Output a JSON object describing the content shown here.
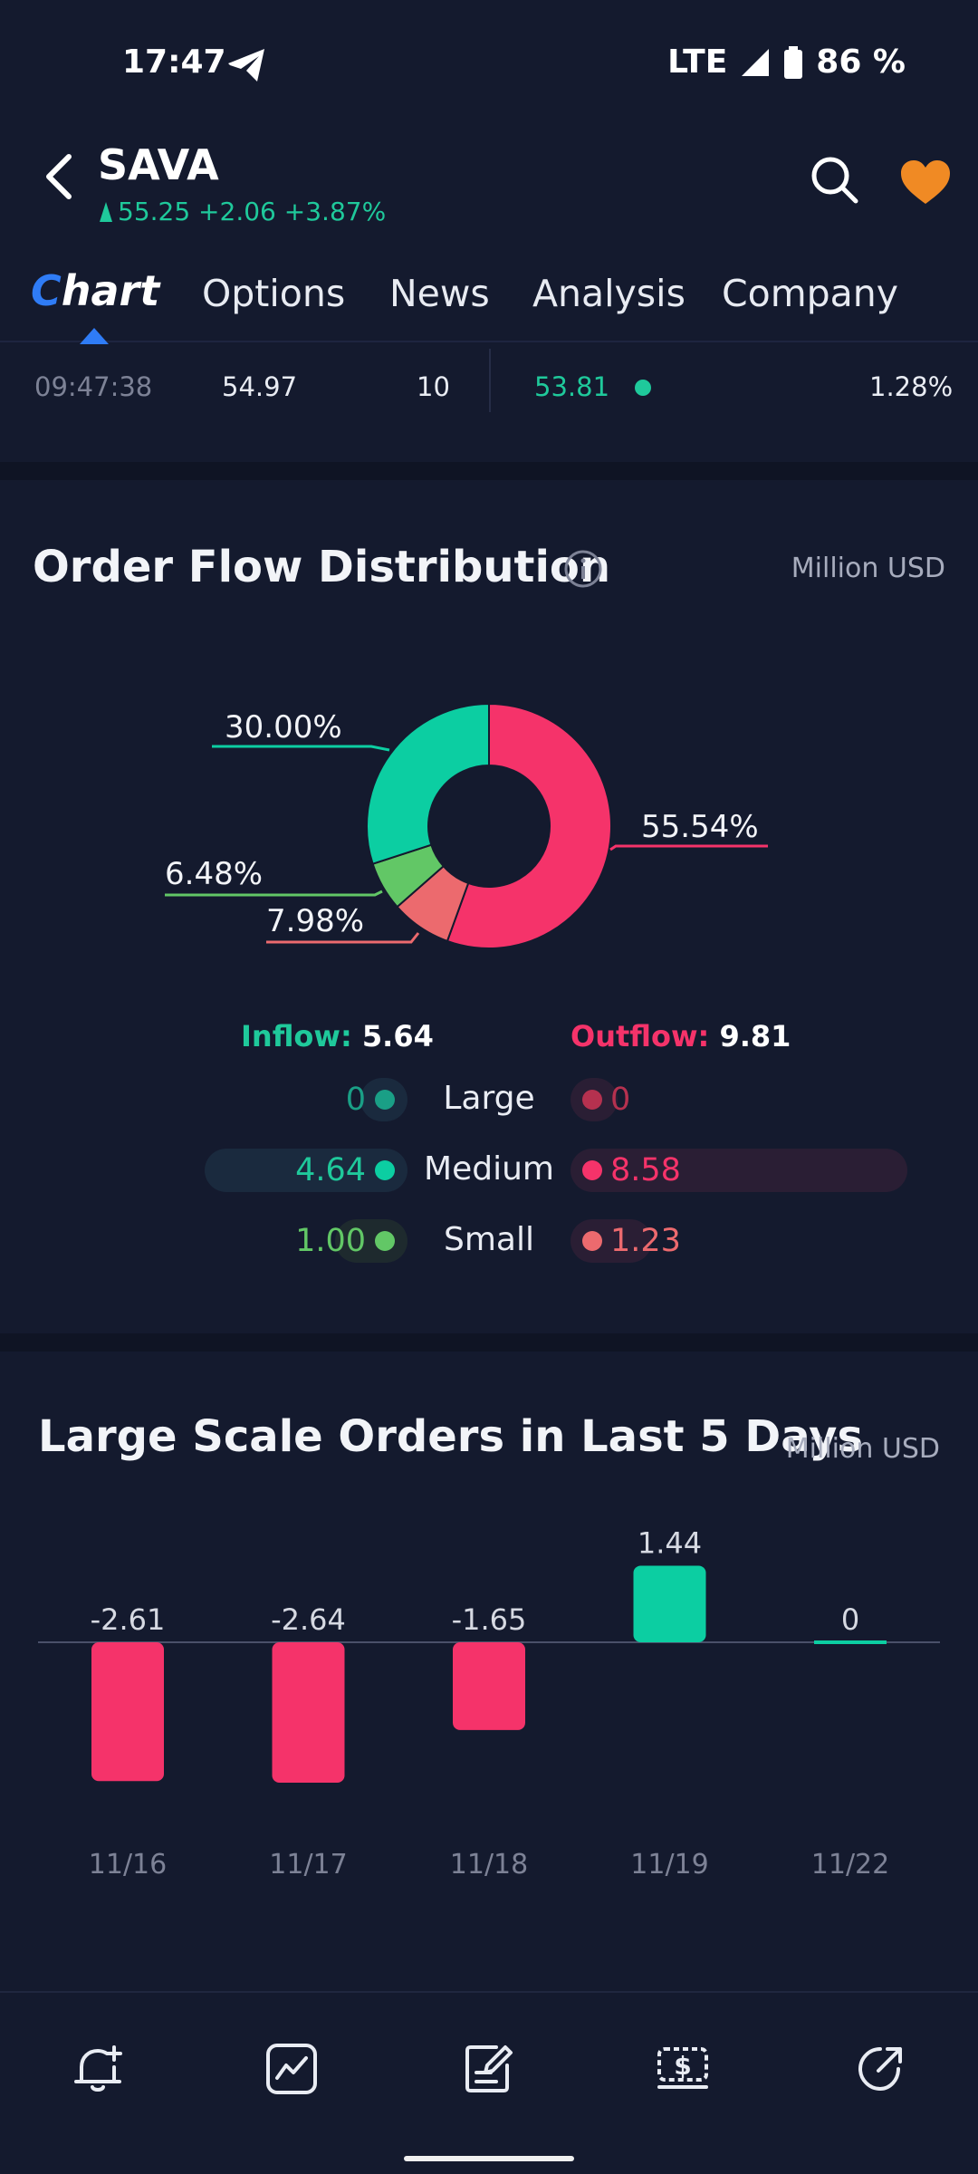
{
  "status": {
    "time": "17:47",
    "network": "LTE",
    "battery": "86 %"
  },
  "header": {
    "symbol": "SAVA",
    "quote": "55.25 +2.06 +3.87%",
    "colors": {
      "up": "#1fc99b",
      "heart": "#f08a24"
    }
  },
  "tabs": [
    {
      "label_prefix": "C",
      "label_rest": "hart",
      "active": true
    },
    {
      "label": "Options"
    },
    {
      "label": "News"
    },
    {
      "label": "Analysis"
    },
    {
      "label": "Company"
    }
  ],
  "tick": {
    "time": "09:47:38",
    "price": "54.97",
    "volume": "10",
    "price2": "53.81",
    "pct": "1.28%"
  },
  "order_flow": {
    "title": "Order Flow Distribution",
    "unit": "Million USD",
    "slices": [
      {
        "label": "55.54%",
        "value": 55.54,
        "color": "#f5336a"
      },
      {
        "label": "7.98%",
        "value": 7.98,
        "color": "#ec6a6e"
      },
      {
        "label": "6.48%",
        "value": 6.48,
        "color": "#62c766"
      },
      {
        "label": "30.00%",
        "value": 30.0,
        "color": "#0ccea2"
      }
    ],
    "inflow_label": "Inflow:",
    "inflow_value": "5.64",
    "outflow_label": "Outflow:",
    "outflow_value": "9.81",
    "rows": [
      {
        "name": "Large",
        "in": "0",
        "out": "0",
        "in_color": "#1a9f86",
        "out_color": "#b5314f"
      },
      {
        "name": "Medium",
        "in": "4.64",
        "out": "8.58",
        "in_color": "#0ccea2",
        "out_color": "#f5336a"
      },
      {
        "name": "Small",
        "in": "1.00",
        "out": "1.23",
        "in_color": "#62c766",
        "out_color": "#ec6a6e"
      }
    ]
  },
  "large_orders": {
    "title": "Large Scale Orders in Last 5 Days",
    "unit": "Million USD"
  },
  "chart_data": {
    "type": "bar",
    "categories": [
      "11/16",
      "11/17",
      "11/18",
      "11/19",
      "11/22"
    ],
    "values": [
      -2.61,
      -2.64,
      -1.65,
      1.44,
      0
    ],
    "labels": [
      "-2.61",
      "-2.64",
      "-1.65",
      "1.44",
      "0"
    ],
    "title": "Large Scale Orders in Last 5 Days",
    "ylabel": "Million USD",
    "colors": {
      "positive": "#0ccea2",
      "negative": "#f5336a"
    }
  },
  "bottom_nav": [
    "bell-plus-icon",
    "chart-line-icon",
    "note-edit-icon",
    "dollar-ticket-icon",
    "share-arrow-icon"
  ]
}
